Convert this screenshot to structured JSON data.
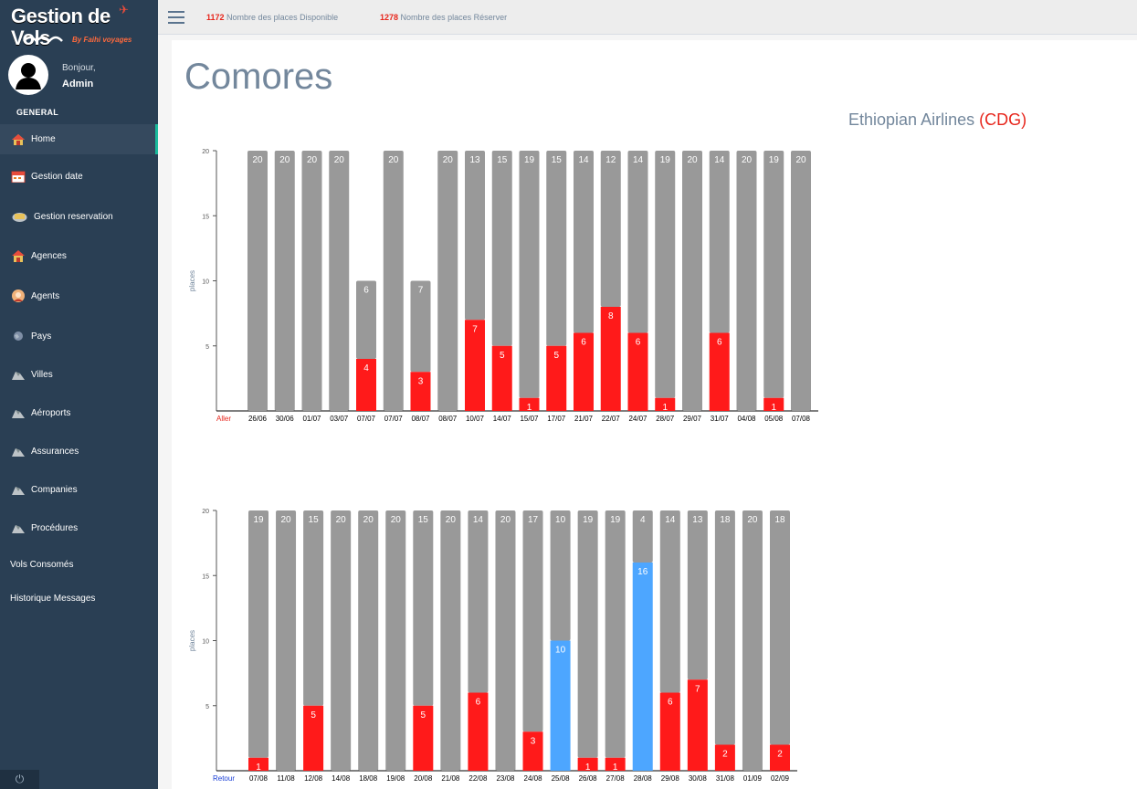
{
  "brand": {
    "title": "Gestion de Vols",
    "subtitle": "By Faihi voyages"
  },
  "user": {
    "greeting": "Bonjour,",
    "name": "Admin"
  },
  "sidebar": {
    "section": "GENERAL",
    "items": [
      {
        "label": "Home",
        "icon": "home-icon",
        "active": true
      },
      {
        "label": "Gestion date",
        "icon": "calendar-icon"
      },
      {
        "label": "Gestion reservation",
        "icon": "reservation-icon"
      },
      {
        "label": "Agences",
        "icon": "agency-icon"
      },
      {
        "label": "Agents",
        "icon": "agent-icon"
      },
      {
        "label": "Pays",
        "icon": "globe-icon"
      },
      {
        "label": "Villes",
        "icon": "city-icon"
      },
      {
        "label": "Aéroports",
        "icon": "airport-icon"
      },
      {
        "label": "Assurances",
        "icon": "insurance-icon"
      },
      {
        "label": "Companies",
        "icon": "company-icon"
      },
      {
        "label": "Procédures",
        "icon": "procedure-icon"
      },
      {
        "label": "Vols Consomés",
        "icon": ""
      },
      {
        "label": "Historique Messages",
        "icon": ""
      }
    ]
  },
  "topbar": {
    "available_count": "1172",
    "available_label": "Nombre des places Disponible",
    "reserved_count": "1278",
    "reserved_label": "Nombre des places Réserver"
  },
  "page": {
    "title": "Comores",
    "airline": "Ethiopian Airlines",
    "airport_code": "(CDG)"
  },
  "colors": {
    "available": "#999999",
    "reserved": "#ff1a1a",
    "highlight": "#4da6ff",
    "accent": "#1abb9c"
  },
  "chart_data": [
    {
      "type": "bar",
      "stacked": true,
      "direction_label": "Aller",
      "direction_color": "#e7261c",
      "ylabel": "places",
      "ylim": [
        0,
        20
      ],
      "yticks": [
        5,
        10,
        15,
        20
      ],
      "categories": [
        "26/06",
        "30/06",
        "01/07",
        "03/07",
        "07/07",
        "07/07",
        "08/07",
        "08/07",
        "10/07",
        "14/07",
        "15/07",
        "17/07",
        "21/07",
        "22/07",
        "24/07",
        "28/07",
        "29/07",
        "31/07",
        "04/08",
        "05/08",
        "07/08"
      ],
      "series": [
        {
          "name": "reserved",
          "values": [
            0,
            0,
            0,
            0,
            4,
            0,
            3,
            0,
            7,
            5,
            1,
            5,
            6,
            8,
            6,
            1,
            0,
            6,
            0,
            1,
            0
          ],
          "colors": [
            "red",
            "red",
            "red",
            "red",
            "red",
            "red",
            "red",
            "red",
            "red",
            "red",
            "red",
            "red",
            "red",
            "red",
            "red",
            "red",
            "red",
            "red",
            "red",
            "red",
            "red"
          ]
        },
        {
          "name": "available",
          "values": [
            20,
            20,
            20,
            20,
            6,
            20,
            7,
            20,
            13,
            15,
            19,
            15,
            14,
            12,
            14,
            19,
            20,
            14,
            20,
            19,
            20
          ]
        }
      ]
    },
    {
      "type": "bar",
      "stacked": true,
      "direction_label": "Retour",
      "direction_color": "#1a3fd6",
      "ylabel": "places",
      "ylim": [
        0,
        20
      ],
      "yticks": [
        5,
        10,
        15,
        20
      ],
      "categories": [
        "07/08",
        "11/08",
        "12/08",
        "14/08",
        "18/08",
        "19/08",
        "20/08",
        "21/08",
        "22/08",
        "23/08",
        "24/08",
        "25/08",
        "26/08",
        "27/08",
        "28/08",
        "29/08",
        "30/08",
        "31/08",
        "01/09",
        "02/09"
      ],
      "series": [
        {
          "name": "reserved",
          "values": [
            1,
            0,
            5,
            0,
            0,
            0,
            5,
            0,
            6,
            0,
            3,
            10,
            1,
            1,
            16,
            6,
            7,
            2,
            0,
            2
          ],
          "colors": [
            "red",
            "red",
            "red",
            "red",
            "red",
            "red",
            "red",
            "red",
            "red",
            "red",
            "red",
            "blue",
            "red",
            "red",
            "blue",
            "red",
            "red",
            "red",
            "red",
            "red"
          ]
        },
        {
          "name": "available",
          "values": [
            19,
            20,
            15,
            20,
            20,
            20,
            15,
            20,
            14,
            20,
            17,
            10,
            19,
            19,
            4,
            14,
            13,
            18,
            20,
            18
          ]
        }
      ]
    }
  ]
}
